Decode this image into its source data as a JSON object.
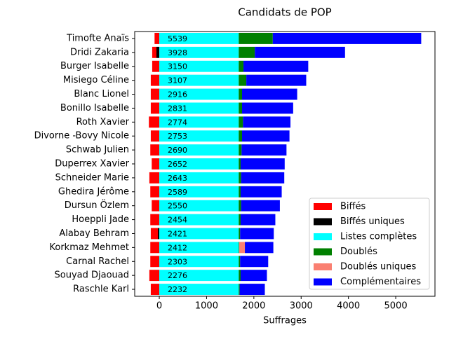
{
  "chart_data": {
    "type": "stacked-barh",
    "title": "Candidats de POP",
    "xlabel": "Suffrages",
    "categories": [
      "Timofte Anaïs",
      "Dridi Zakaria",
      "Burger Isabelle",
      "Misiego Céline",
      "Blanc Lionel",
      "Bonillo Isabelle",
      "Roth Xavier",
      "Divorne -Bovy Nicole",
      "Schwab Julien",
      "Duperrex Xavier",
      "Schneider Marie",
      "Ghedira Jérôme",
      "Dursun Özlem",
      "Hoeppli Jade",
      "Alabay Behram",
      "Korkmaz Mehmet",
      "Carnal Rachel",
      "Souyad Djaouad",
      "Raschle Karl"
    ],
    "totals": [
      5539,
      3928,
      3150,
      3107,
      2916,
      2831,
      2774,
      2753,
      2690,
      2652,
      2643,
      2589,
      2550,
      2454,
      2421,
      2412,
      2303,
      2276,
      2232
    ],
    "series": [
      {
        "name": "Biffés",
        "color": "#ff0000",
        "values": [
          -100,
          -90,
          -150,
          -180,
          -180,
          -180,
          -220,
          -180,
          -190,
          -160,
          -210,
          -190,
          -160,
          -190,
          -150,
          -190,
          -190,
          -210,
          -180
        ]
      },
      {
        "name": "Biffés uniques",
        "color": "#000000",
        "values": [
          0,
          -60,
          0,
          0,
          0,
          0,
          0,
          0,
          0,
          0,
          0,
          0,
          0,
          0,
          -30,
          0,
          0,
          0,
          0
        ]
      },
      {
        "name": "Listes complètes",
        "color": "#00ffff",
        "values": [
          1680,
          1680,
          1680,
          1680,
          1680,
          1680,
          1680,
          1680,
          1680,
          1680,
          1680,
          1680,
          1680,
          1680,
          1680,
          1680,
          1680,
          1680,
          1680
        ]
      },
      {
        "name": "Doublés",
        "color": "#008000",
        "values": [
          720,
          340,
          100,
          160,
          70,
          70,
          90,
          70,
          60,
          40,
          50,
          40,
          50,
          40,
          30,
          10,
          30,
          40,
          20
        ]
      },
      {
        "name": "Doublés uniques",
        "color": "#fa8072",
        "values": [
          0,
          0,
          0,
          0,
          0,
          0,
          0,
          0,
          0,
          0,
          0,
          0,
          0,
          0,
          0,
          120,
          0,
          0,
          0
        ]
      },
      {
        "name": "Complémentaires",
        "color": "#0000ff",
        "values": [
          3139,
          1908,
          1370,
          1267,
          1166,
          1081,
          1004,
          1003,
          950,
          932,
          913,
          869,
          820,
          734,
          711,
          602,
          593,
          556,
          532
        ]
      }
    ],
    "xlim": [
      -520,
      5830
    ],
    "xticks": [
      0,
      1000,
      2000,
      3000,
      4000,
      5000
    ],
    "legend": "lower right"
  }
}
